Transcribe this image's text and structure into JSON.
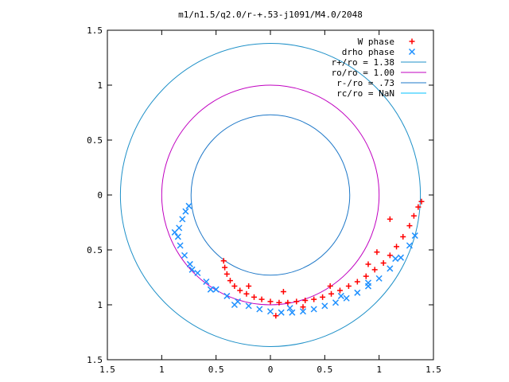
{
  "chart_data": {
    "type": "scatter",
    "title": "m1/n1.5/q2.0/r-+.53-j1091/M4.0/2048",
    "xlim": [
      -1.5,
      1.5
    ],
    "ylim": [
      -1.5,
      1.5
    ],
    "x_ticks": [
      -1.5,
      -1,
      -0.5,
      0,
      0.5,
      1,
      1.5
    ],
    "y_ticks": [
      -1.5,
      -1,
      -0.5,
      0,
      0.5,
      1,
      1.5
    ],
    "x_tick_labels": [
      "1.5",
      "1",
      "0.5",
      "0",
      "0.5",
      "1",
      "1.5"
    ],
    "y_tick_labels": [
      "1.5",
      "1",
      "0.5",
      "0",
      "0.5",
      "1",
      "1.5"
    ],
    "grid": false,
    "legend_position": "top-right",
    "series": [
      {
        "name": "W phase",
        "marker": "plus",
        "color": "#ff0000",
        "points": [
          [
            -0.43,
            -0.6
          ],
          [
            -0.42,
            -0.66
          ],
          [
            -0.4,
            -0.72
          ],
          [
            -0.37,
            -0.78
          ],
          [
            -0.33,
            -0.83
          ],
          [
            -0.28,
            -0.87
          ],
          [
            -0.22,
            -0.9
          ],
          [
            -0.15,
            -0.93
          ],
          [
            -0.08,
            -0.95
          ],
          [
            0.0,
            -0.97
          ],
          [
            0.08,
            -0.98
          ],
          [
            0.16,
            -0.98
          ],
          [
            0.24,
            -0.97
          ],
          [
            0.32,
            -0.96
          ],
          [
            0.4,
            -0.95
          ],
          [
            0.48,
            -0.93
          ],
          [
            0.56,
            -0.9
          ],
          [
            0.64,
            -0.87
          ],
          [
            0.72,
            -0.83
          ],
          [
            0.8,
            -0.79
          ],
          [
            0.88,
            -0.74
          ],
          [
            0.96,
            -0.68
          ],
          [
            1.04,
            -0.62
          ],
          [
            1.1,
            -0.55
          ],
          [
            1.16,
            -0.47
          ],
          [
            1.22,
            -0.38
          ],
          [
            1.28,
            -0.28
          ],
          [
            1.32,
            -0.19
          ],
          [
            1.36,
            -0.11
          ],
          [
            1.39,
            -0.06
          ],
          [
            0.05,
            -1.1
          ],
          [
            0.12,
            -0.88
          ],
          [
            0.55,
            -0.83
          ],
          [
            0.9,
            -0.63
          ],
          [
            1.1,
            -0.22
          ],
          [
            0.98,
            -0.52
          ],
          [
            0.3,
            -1.02
          ],
          [
            -0.2,
            -0.83
          ]
        ]
      },
      {
        "name": "drho phase",
        "marker": "cross",
        "color": "#1e90ff",
        "points": [
          [
            -0.75,
            -0.1
          ],
          [
            -0.78,
            -0.15
          ],
          [
            -0.81,
            -0.22
          ],
          [
            -0.84,
            -0.3
          ],
          [
            -0.85,
            -0.38
          ],
          [
            -0.83,
            -0.46
          ],
          [
            -0.79,
            -0.55
          ],
          [
            -0.74,
            -0.63
          ],
          [
            -0.67,
            -0.71
          ],
          [
            -0.59,
            -0.79
          ],
          [
            -0.5,
            -0.86
          ],
          [
            -0.4,
            -0.92
          ],
          [
            -0.3,
            -0.97
          ],
          [
            -0.2,
            -1.01
          ],
          [
            -0.1,
            -1.04
          ],
          [
            0.0,
            -1.06
          ],
          [
            0.1,
            -1.07
          ],
          [
            0.2,
            -1.07
          ],
          [
            0.3,
            -1.06
          ],
          [
            0.4,
            -1.04
          ],
          [
            0.5,
            -1.01
          ],
          [
            0.6,
            -0.98
          ],
          [
            0.7,
            -0.94
          ],
          [
            0.8,
            -0.89
          ],
          [
            0.9,
            -0.83
          ],
          [
            1.0,
            -0.76
          ],
          [
            1.1,
            -0.67
          ],
          [
            1.2,
            -0.57
          ],
          [
            1.28,
            -0.46
          ],
          [
            1.33,
            -0.37
          ],
          [
            -0.88,
            -0.34
          ],
          [
            -0.72,
            -0.68
          ],
          [
            -0.33,
            -1.0
          ],
          [
            0.18,
            -1.03
          ],
          [
            0.65,
            -0.92
          ],
          [
            1.15,
            -0.58
          ],
          [
            0.9,
            -0.8
          ],
          [
            -0.55,
            -0.86
          ]
        ]
      }
    ],
    "circles": [
      {
        "label": "r+/ro = 1.38",
        "radius": 1.38,
        "color": "#1e90c8"
      },
      {
        "label": "ro/ro = 1.00",
        "radius": 1.0,
        "color": "#c000c0"
      },
      {
        "label": "r-/ro = .73",
        "radius": 0.73,
        "color": "#1e78c8"
      },
      {
        "label": "rc/ro = NaN",
        "radius": null,
        "color": "#00c0ff"
      }
    ]
  }
}
